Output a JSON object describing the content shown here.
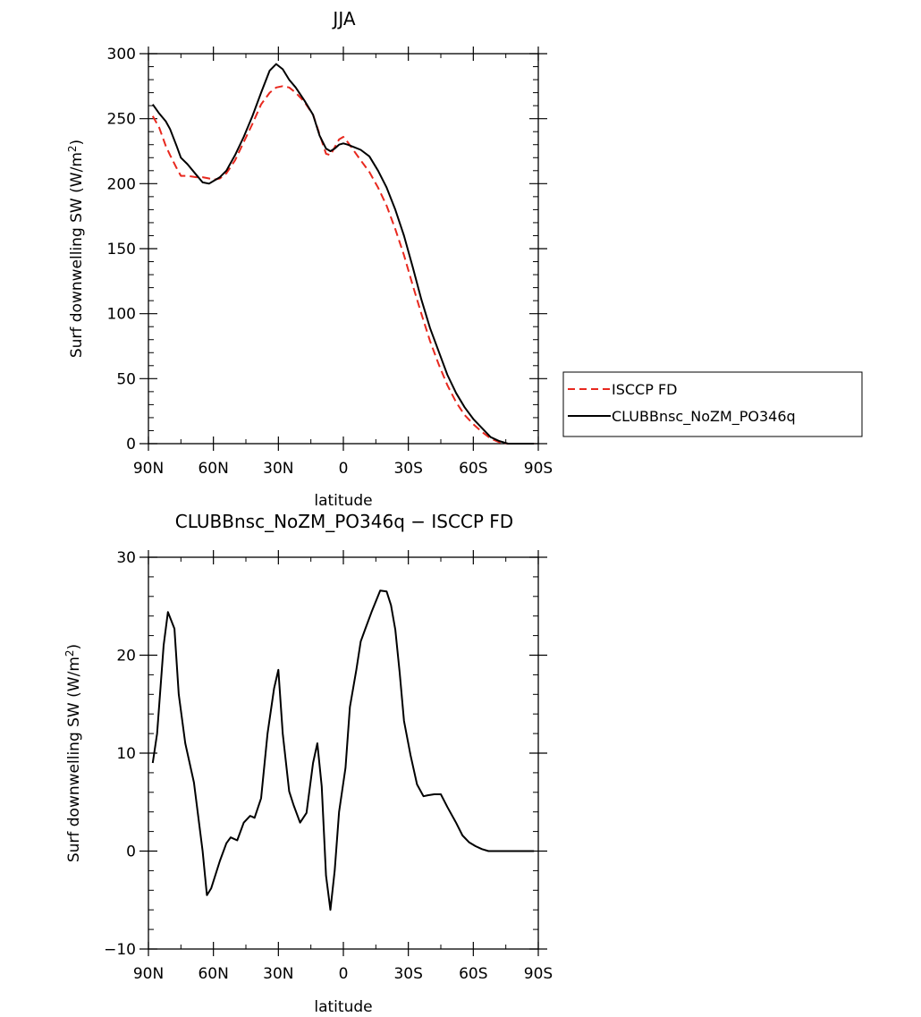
{
  "chart_data": [
    {
      "type": "line",
      "title": "JJA",
      "xlabel": "latitude",
      "ylabel": "Surf downwelling SW (W/m²)",
      "ylabel_parts": {
        "before": "Surf downwelling SW (W/m",
        "sup": "2",
        "after": ")"
      },
      "xlim": [
        -90,
        90
      ],
      "ylim": [
        0,
        300
      ],
      "x_ticks": [
        -90,
        -60,
        -30,
        0,
        30,
        60,
        90
      ],
      "x_tick_labels": [
        "90N",
        "60N",
        "30N",
        "0",
        "30S",
        "60S",
        "90S"
      ],
      "y_ticks": [
        0,
        50,
        100,
        150,
        200,
        250,
        300
      ],
      "y_tick_labels": [
        "0",
        "50",
        "100",
        "150",
        "200",
        "250",
        "300"
      ],
      "legend_position": "right",
      "series": [
        {
          "name": "ISCCP FD",
          "color": "#e8281e",
          "dash": "dashed",
          "x": [
            -88,
            -85,
            -82,
            -80,
            -77,
            -75,
            -72,
            -68,
            -65,
            -62,
            -60,
            -57,
            -54,
            -50,
            -46,
            -42,
            -38,
            -34,
            -31,
            -28,
            -25,
            -22,
            -18,
            -14,
            -11,
            -8,
            -6,
            -4,
            -2,
            0,
            2,
            5,
            8,
            12,
            16,
            20,
            24,
            28,
            32,
            36,
            40,
            44,
            48,
            52,
            56,
            60,
            64,
            68,
            72,
            76,
            80,
            84,
            88
          ],
          "values": [
            252,
            243,
            229,
            222,
            212,
            206,
            206,
            205,
            205,
            204,
            203,
            204,
            208,
            218,
            232,
            246,
            261,
            270,
            274,
            275,
            274,
            270,
            263,
            253,
            238,
            223,
            222,
            228,
            234,
            236,
            232,
            225,
            218,
            209,
            197,
            183,
            165,
            145,
            122,
            100,
            79,
            61,
            45,
            32,
            22,
            15,
            9,
            4,
            1,
            0,
            0,
            0,
            0
          ]
        },
        {
          "name": "CLUBBnsc_NoZM_PO346q",
          "color": "#000000",
          "dash": "solid",
          "x": [
            -88,
            -85,
            -82,
            -80,
            -77,
            -75,
            -72,
            -68,
            -65,
            -62,
            -60,
            -57,
            -54,
            -50,
            -46,
            -42,
            -38,
            -34,
            -31,
            -28,
            -25,
            -22,
            -18,
            -14,
            -11,
            -8,
            -6,
            -4,
            -2,
            0,
            2,
            5,
            8,
            12,
            16,
            20,
            24,
            28,
            32,
            36,
            40,
            44,
            48,
            52,
            56,
            60,
            64,
            68,
            72,
            76,
            80,
            84,
            88
          ],
          "values": [
            261,
            254,
            248,
            242,
            229,
            220,
            215,
            207,
            201,
            200,
            202,
            205,
            210,
            222,
            236,
            252,
            270,
            287,
            292,
            288,
            280,
            274,
            264,
            253,
            237,
            227,
            225,
            227,
            230,
            231,
            230,
            228,
            226,
            221,
            210,
            197,
            180,
            160,
            136,
            111,
            89,
            71,
            53,
            39,
            28,
            19,
            12,
            5,
            2,
            0,
            0,
            0,
            0
          ]
        }
      ]
    },
    {
      "type": "line",
      "title": "CLUBBnsc_NoZM_PO346q − ISCCP FD",
      "xlabel": "latitude",
      "ylabel": "Surf downwelling SW (W/m²)",
      "ylabel_parts": {
        "before": "Surf downwelling SW (W/m",
        "sup": "2",
        "after": ")"
      },
      "xlim": [
        -90,
        90
      ],
      "ylim": [
        -10,
        30
      ],
      "x_ticks": [
        -90,
        -60,
        -30,
        0,
        30,
        60,
        90
      ],
      "x_tick_labels": [
        "90N",
        "60N",
        "30N",
        "0",
        "30S",
        "60S",
        "90S"
      ],
      "y_ticks": [
        -10,
        0,
        10,
        20,
        30
      ],
      "y_tick_labels": [
        "−10",
        "0",
        "10",
        "20",
        "30"
      ],
      "series": [
        {
          "color": "#000000",
          "dash": "solid",
          "x": [
            -88,
            -86,
            -83,
            -81,
            -78,
            -76,
            -73,
            -69,
            -65,
            -63,
            -61,
            -57,
            -54,
            -52,
            -49,
            -46,
            -43,
            -41,
            -38,
            -35,
            -32,
            -30,
            -28,
            -25,
            -23,
            -20,
            -17,
            -14,
            -12,
            -10,
            -8,
            -6,
            -4,
            -2,
            1,
            3,
            6,
            8,
            10,
            13,
            17,
            20,
            22,
            24,
            26,
            28,
            31,
            34,
            37,
            39,
            42,
            45,
            48,
            52,
            55,
            58,
            61,
            64,
            67,
            71,
            74,
            77,
            80,
            84,
            88
          ],
          "values": [
            9,
            12,
            21,
            24.4,
            22.7,
            16,
            11,
            7,
            0,
            -4.5,
            -3.8,
            -1,
            0.8,
            1.4,
            1.1,
            2.9,
            3.6,
            3.4,
            5.4,
            12,
            16.6,
            18.5,
            12,
            6.1,
            4.7,
            2.9,
            3.9,
            9,
            11,
            6.6,
            -2.5,
            -6,
            -2,
            4,
            8.5,
            14.7,
            18.5,
            21.4,
            22.6,
            24.4,
            26.6,
            26.5,
            25.1,
            22.6,
            18.2,
            13.3,
            9.8,
            6.8,
            5.6,
            5.7,
            5.8,
            5.8,
            4.5,
            2.9,
            1.6,
            0.9,
            0.5,
            0.2,
            0,
            0,
            0,
            0,
            0,
            0,
            0
          ]
        }
      ]
    }
  ]
}
